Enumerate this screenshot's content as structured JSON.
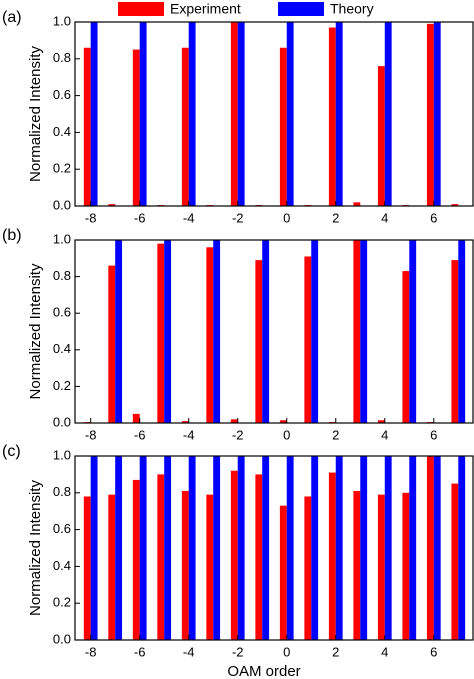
{
  "chart_data": [
    {
      "type": "bar",
      "label": "(a)",
      "ylabel": "Normalized Intensity",
      "x": [
        -8,
        -7,
        -6,
        -5,
        -4,
        -3,
        -2,
        -1,
        0,
        1,
        2,
        3,
        4,
        5,
        6,
        7
      ],
      "xlim": [
        -8.64,
        7.6
      ],
      "xticks": [
        -8,
        -6,
        -4,
        -2,
        0,
        2,
        4,
        6
      ],
      "ylim": [
        0,
        1
      ],
      "yticks": [
        {
          "value": 0,
          "label": "0.0"
        },
        0.2,
        0.4,
        0.6,
        0.8,
        {
          "value": 1,
          "label": "1.0"
        }
      ],
      "series": [
        {
          "name": "Experiment",
          "color": "#ff0000",
          "values": [
            0.86,
            0.01,
            0.85,
            0.005,
            0.86,
            0.005,
            1.0,
            0.005,
            0.86,
            0.005,
            0.97,
            0.02,
            0.76,
            0.005,
            0.99,
            0.01
          ]
        },
        {
          "name": "Theory",
          "color": "#0000ff",
          "values": [
            1,
            0,
            1,
            0,
            1,
            0,
            1,
            0,
            1,
            0,
            1,
            0,
            1,
            0,
            1,
            0
          ]
        }
      ]
    },
    {
      "type": "bar",
      "label": "(b)",
      "ylabel": "Normalized Intensity",
      "x": [
        -8,
        -7,
        -6,
        -5,
        -4,
        -3,
        -2,
        -1,
        0,
        1,
        2,
        3,
        4,
        5,
        6,
        7
      ],
      "xlim": [
        -8.64,
        7.6
      ],
      "xticks": [
        -8,
        -6,
        -4,
        -2,
        0,
        2,
        4,
        6
      ],
      "ylim": [
        0,
        1
      ],
      "yticks": [
        {
          "value": 0,
          "label": "0.0"
        },
        0.2,
        0.4,
        0.6,
        0.8,
        {
          "value": 1,
          "label": "1.0"
        }
      ],
      "series": [
        {
          "color": "#ff0000",
          "values": [
            0.005,
            0.86,
            0.05,
            0.98,
            0.01,
            0.96,
            0.02,
            0.89,
            0.015,
            0.91,
            0.005,
            1.0,
            0.015,
            0.83,
            0.005,
            0.89
          ]
        },
        {
          "color": "#0000ff",
          "values": [
            0,
            1,
            0,
            1,
            0,
            1,
            0,
            1,
            0,
            1,
            0,
            1,
            0,
            1,
            0,
            1
          ]
        }
      ]
    },
    {
      "type": "bar",
      "label": "(c)",
      "ylabel": "Normalized Intensity",
      "xlabel": "OAM order",
      "x": [
        -8,
        -7,
        -6,
        -5,
        -4,
        -3,
        -2,
        -1,
        0,
        1,
        2,
        3,
        4,
        5,
        6,
        7
      ],
      "xlim": [
        -8.64,
        7.6
      ],
      "xticks": [
        -8,
        -6,
        -4,
        -2,
        0,
        2,
        4,
        6
      ],
      "ylim": [
        0,
        1
      ],
      "yticks": [
        {
          "value": 0,
          "label": "0.0"
        },
        0.2,
        0.4,
        0.6,
        0.8,
        {
          "value": 1,
          "label": "1.0"
        }
      ],
      "series": [
        {
          "color": "#ff0000",
          "values": [
            0.78,
            0.79,
            0.87,
            0.9,
            0.81,
            0.79,
            0.92,
            0.9,
            0.73,
            0.78,
            0.91,
            0.81,
            0.79,
            0.8,
            1.0,
            0.85
          ]
        },
        {
          "color": "#0000ff",
          "values": [
            1,
            1,
            1,
            1,
            1,
            1,
            1,
            1,
            1,
            1,
            1,
            1,
            1,
            1,
            1,
            1
          ]
        }
      ]
    }
  ]
}
